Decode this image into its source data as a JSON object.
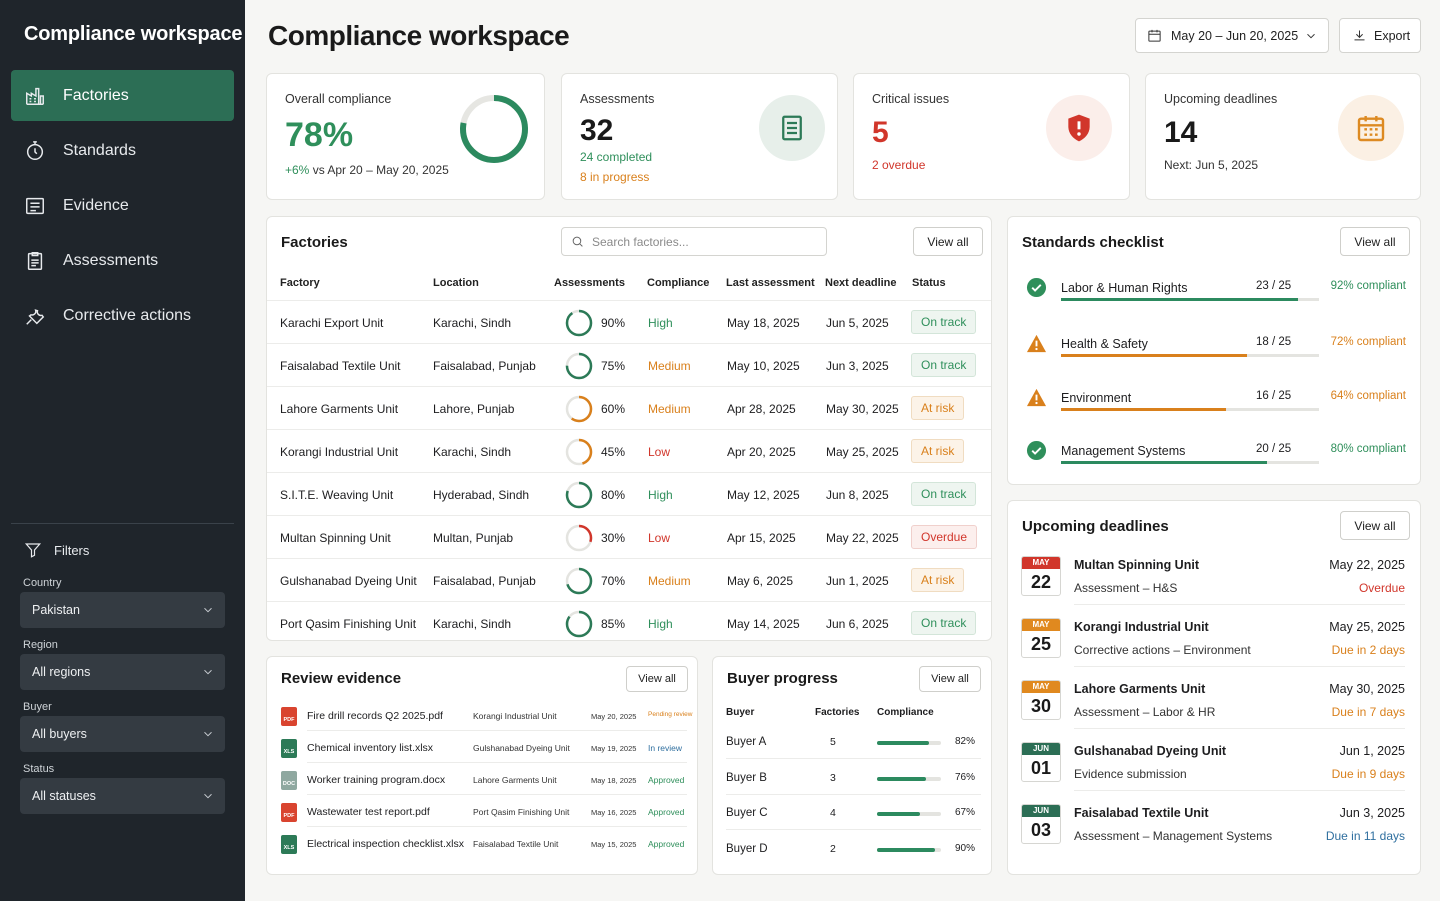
{
  "sidebar": {
    "brand": "Compliance workspace",
    "nav": [
      {
        "label": "Factories",
        "icon": "factory-icon",
        "active": true
      },
      {
        "label": "Standards",
        "icon": "standards-icon"
      },
      {
        "label": "Evidence",
        "icon": "evidence-icon"
      },
      {
        "label": "Assessments",
        "icon": "clipboard-icon"
      },
      {
        "label": "Corrective actions",
        "icon": "wrench-icon"
      }
    ],
    "filters_title": "Filters",
    "filters": [
      {
        "label": "Country",
        "value": "Pakistan"
      },
      {
        "label": "Region",
        "value": "All regions"
      },
      {
        "label": "Buyer",
        "value": "All buyers"
      },
      {
        "label": "Status",
        "value": "All statuses"
      }
    ]
  },
  "header": {
    "title": "Compliance workspace",
    "date_range": "May 20 – Jun 20, 2025",
    "export_label": "Export"
  },
  "kpis": {
    "overall": {
      "label": "Overall compliance",
      "value": "78%",
      "progress": 78,
      "change": "+6%",
      "change_text": "vs Apr 20 – May 20, 2025"
    },
    "assessments": {
      "label": "Assessments",
      "value": "32",
      "completed": "24 completed",
      "in_progress": "8 in progress"
    },
    "critical": {
      "label": "Critical issues",
      "value": "5",
      "sub": "2 overdue"
    },
    "deadlines": {
      "label": "Upcoming deadlines",
      "value": "14",
      "sub": "Next: Jun 5, 2025"
    }
  },
  "factories": {
    "title": "Factories",
    "search_placeholder": "Search factories...",
    "view_all": "View all",
    "columns": [
      "Factory",
      "Location",
      "Assessments",
      "Compliance",
      "Last assessment",
      "Next deadline",
      "Status"
    ],
    "rows": [
      {
        "name": "Karachi Export Unit",
        "location": "Karachi, Sindh",
        "assess": "90%",
        "pct": 90,
        "compliance": "High",
        "last": "May 18, 2025",
        "next": "Jun 5, 2025",
        "status": "On track"
      },
      {
        "name": "Faisalabad Textile Unit",
        "location": "Faisalabad, Punjab",
        "assess": "75%",
        "pct": 75,
        "compliance": "Medium",
        "last": "May 10, 2025",
        "next": "Jun 3, 2025",
        "status": "On track"
      },
      {
        "name": "Lahore Garments Unit",
        "location": "Lahore, Punjab",
        "assess": "60%",
        "pct": 60,
        "compliance": "Medium",
        "last": "Apr 28, 2025",
        "next": "May 30, 2025",
        "status": "At risk"
      },
      {
        "name": "Korangi Industrial Unit",
        "location": "Karachi, Sindh",
        "assess": "45%",
        "pct": 45,
        "compliance": "Low",
        "last": "Apr 20, 2025",
        "next": "May 25, 2025",
        "status": "At risk"
      },
      {
        "name": "S.I.T.E. Weaving Unit",
        "location": "Hyderabad, Sindh",
        "assess": "80%",
        "pct": 80,
        "compliance": "High",
        "last": "May 12, 2025",
        "next": "Jun 8, 2025",
        "status": "On track"
      },
      {
        "name": "Multan Spinning Unit",
        "location": "Multan, Punjab",
        "assess": "30%",
        "pct": 30,
        "compliance": "Low",
        "last": "Apr 15, 2025",
        "next": "May 22, 2025",
        "status": "Overdue"
      },
      {
        "name": "Gulshanabad Dyeing Unit",
        "location": "Faisalabad, Punjab",
        "assess": "70%",
        "pct": 70,
        "compliance": "Medium",
        "last": "May 6, 2025",
        "next": "Jun 1, 2025",
        "status": "At risk"
      },
      {
        "name": "Port Qasim Finishing Unit",
        "location": "Karachi, Sindh",
        "assess": "85%",
        "pct": 85,
        "compliance": "High",
        "last": "May 14, 2025",
        "next": "Jun 6, 2025",
        "status": "On track"
      }
    ]
  },
  "checklist": {
    "title": "Standards checklist",
    "view_all": "View all",
    "items": [
      {
        "name": "Labor & Human Rights",
        "count": "23 / 25",
        "pct_label": "92% compliant",
        "pct": 92,
        "state": "ok"
      },
      {
        "name": "Health & Safety",
        "count": "18 / 25",
        "pct_label": "72% compliant",
        "pct": 72,
        "state": "warn"
      },
      {
        "name": "Environment",
        "count": "16 / 25",
        "pct_label": "64% compliant",
        "pct": 64,
        "state": "warn"
      },
      {
        "name": "Management Systems",
        "count": "20 / 25",
        "pct_label": "80% compliant",
        "pct": 80,
        "state": "ok"
      }
    ]
  },
  "deadlines": {
    "title": "Upcoming deadlines",
    "view_all": "View all",
    "items": [
      {
        "month": "MAY",
        "day": "22",
        "factory": "Multan Spinning Unit",
        "task": "Assessment – H&S",
        "date": "May 22, 2025",
        "note": "Overdue",
        "level": "red"
      },
      {
        "month": "MAY",
        "day": "25",
        "factory": "Korangi Industrial Unit",
        "task": "Corrective actions – Environment",
        "date": "May 25, 2025",
        "note": "Due in 2 days",
        "level": "orange"
      },
      {
        "month": "MAY",
        "day": "30",
        "factory": "Lahore Garments Unit",
        "task": "Assessment – Labor & HR",
        "date": "May 30, 2025",
        "note": "Due in 7 days",
        "level": "orange"
      },
      {
        "month": "JUN",
        "day": "01",
        "factory": "Gulshanabad Dyeing Unit",
        "task": "Evidence submission",
        "date": "Jun 1, 2025",
        "note": "Due in 9 days",
        "level": "orange"
      },
      {
        "month": "JUN",
        "day": "03",
        "factory": "Faisalabad Textile Unit",
        "task": "Assessment – Management Systems",
        "date": "Jun 3, 2025",
        "note": "Due in 11 days",
        "level": "blue"
      }
    ]
  },
  "evidence": {
    "title": "Review evidence",
    "view_all": "View all",
    "items": [
      {
        "type": "PDF",
        "file": "Fire drill records Q2 2025.pdf",
        "factory": "Korangi Industrial Unit",
        "date": "May 20, 2025",
        "status": "Pending review",
        "level": "orange"
      },
      {
        "type": "XLS",
        "file": "Chemical inventory list.xlsx",
        "factory": "Gulshanabad Dyeing Unit",
        "date": "May 19, 2025",
        "status": "In review",
        "level": "blue"
      },
      {
        "type": "DOC",
        "file": "Worker training program.docx",
        "factory": "Lahore Garments Unit",
        "date": "May 18, 2025",
        "status": "Approved",
        "level": "green"
      },
      {
        "type": "PDF",
        "file": "Wastewater test report.pdf",
        "factory": "Port Qasim Finishing Unit",
        "date": "May 16, 2025",
        "status": "Approved",
        "level": "green"
      },
      {
        "type": "XLS",
        "file": "Electrical inspection checklist.xlsx",
        "factory": "Faisalabad Textile Unit",
        "date": "May 15, 2025",
        "status": "Approved",
        "level": "green"
      }
    ]
  },
  "buyers": {
    "title": "Buyer progress",
    "view_all": "View all",
    "columns": [
      "Buyer",
      "Factories",
      "Compliance"
    ],
    "rows": [
      {
        "name": "Buyer A",
        "factories": "5",
        "pct_label": "82%",
        "pct": 82
      },
      {
        "name": "Buyer B",
        "factories": "3",
        "pct_label": "76%",
        "pct": 76
      },
      {
        "name": "Buyer C",
        "factories": "4",
        "pct_label": "67%",
        "pct": 67
      },
      {
        "name": "Buyer D",
        "factories": "2",
        "pct_label": "90%",
        "pct": 90
      }
    ]
  },
  "colors": {
    "accent": "#2c6e55",
    "green": "#2f8f5b",
    "orange": "#d9801c",
    "red": "#d1362b",
    "blue": "#2f6f9f"
  }
}
